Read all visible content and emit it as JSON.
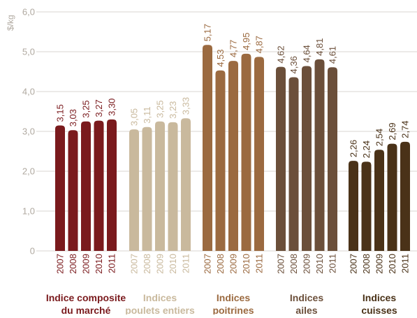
{
  "chart_data": {
    "type": "bar",
    "ylabel": "$/kg",
    "ylim": [
      0,
      6
    ],
    "yticks": [
      "0",
      "1,0",
      "2,0",
      "3,0",
      "4,0",
      "5,0",
      "6,0"
    ],
    "grid": true,
    "categories": [
      "2007",
      "2008",
      "2009",
      "2010",
      "2011"
    ],
    "groups": [
      {
        "name_lines": [
          "Indice composite",
          "du marché"
        ],
        "color": "#7a1a1d",
        "values": [
          3.15,
          3.03,
          3.25,
          3.27,
          3.3
        ],
        "labels": [
          "3,15",
          "3,03",
          "3,25",
          "3,27",
          "3,30"
        ]
      },
      {
        "name_lines": [
          "Indices",
          "poulets entiers"
        ],
        "color": "#c9b99d",
        "values": [
          3.05,
          3.11,
          3.25,
          3.23,
          3.33
        ],
        "labels": [
          "3,05",
          "3,11",
          "3,25",
          "3,23",
          "3,33"
        ]
      },
      {
        "name_lines": [
          "Indices",
          "poitrines"
        ],
        "color": "#9b6a40",
        "values": [
          5.17,
          4.53,
          4.77,
          4.95,
          4.87
        ],
        "labels": [
          "5,17",
          "4,53",
          "4,77",
          "4,95",
          "4,87"
        ]
      },
      {
        "name_lines": [
          "Indices",
          "ailes"
        ],
        "color": "#6b4f3a",
        "values": [
          4.62,
          4.36,
          4.64,
          4.81,
          4.61
        ],
        "labels": [
          "4,62",
          "4,36",
          "4,64",
          "4,81",
          "4,61"
        ]
      },
      {
        "name_lines": [
          "Indices",
          "cuisses"
        ],
        "color": "#4a3218",
        "values": [
          2.26,
          2.24,
          2.54,
          2.69,
          2.74
        ],
        "labels": [
          "2,26",
          "2,24",
          "2,54",
          "2,69",
          "2,74"
        ]
      }
    ]
  }
}
